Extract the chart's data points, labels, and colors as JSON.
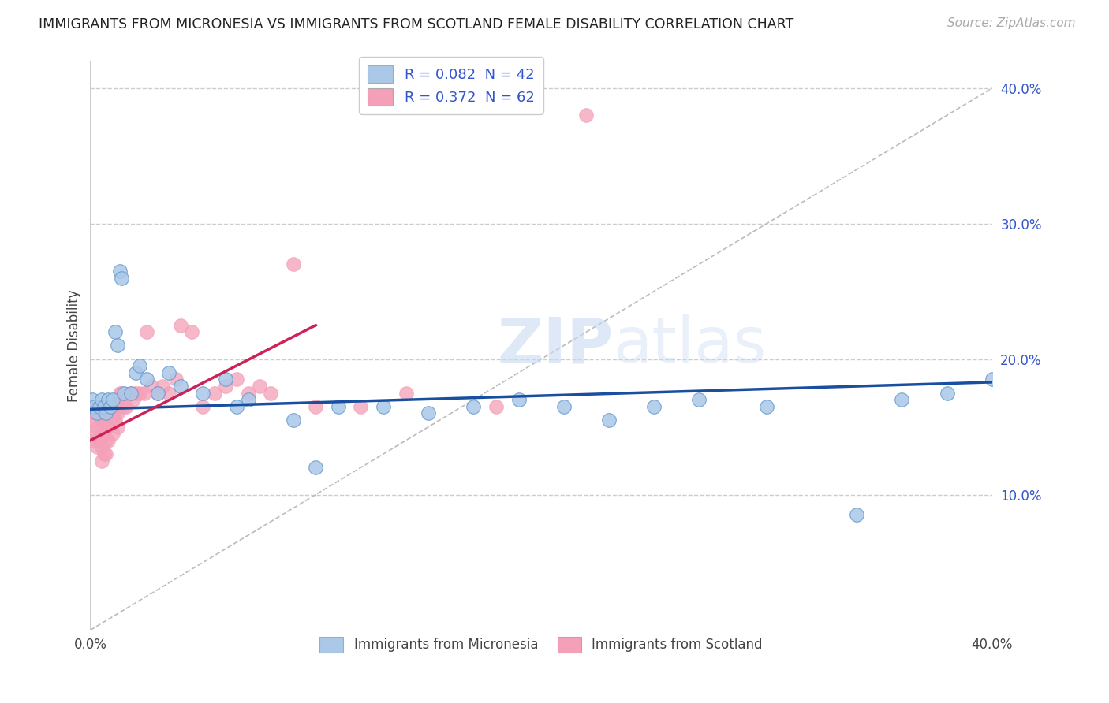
{
  "title": "IMMIGRANTS FROM MICRONESIA VS IMMIGRANTS FROM SCOTLAND FEMALE DISABILITY CORRELATION CHART",
  "source": "Source: ZipAtlas.com",
  "ylabel": "Female Disability",
  "blue_color": "#aac8e8",
  "pink_color": "#f4a0b8",
  "blue_line_color": "#1a4fa0",
  "pink_line_color": "#cc2255",
  "legend_text_color": "#3355cc",
  "legend_blue_label": "R = 0.082  N = 42",
  "legend_pink_label": "R = 0.372  N = 62",
  "legend_micronesia": "Immigrants from Micronesia",
  "legend_scotland": "Immigrants from Scotland",
  "xlim": [
    0.0,
    0.4
  ],
  "ylim": [
    0.0,
    0.42
  ],
  "micronesia_x": [
    0.001,
    0.002,
    0.003,
    0.004,
    0.005,
    0.006,
    0.007,
    0.008,
    0.009,
    0.01,
    0.011,
    0.012,
    0.013,
    0.014,
    0.015,
    0.018,
    0.02,
    0.022,
    0.025,
    0.03,
    0.035,
    0.04,
    0.05,
    0.06,
    0.065,
    0.07,
    0.09,
    0.1,
    0.11,
    0.13,
    0.15,
    0.17,
    0.19,
    0.21,
    0.23,
    0.25,
    0.27,
    0.3,
    0.34,
    0.36,
    0.38,
    0.4
  ],
  "micronesia_y": [
    0.17,
    0.165,
    0.16,
    0.165,
    0.17,
    0.165,
    0.16,
    0.17,
    0.165,
    0.17,
    0.22,
    0.21,
    0.265,
    0.26,
    0.175,
    0.175,
    0.19,
    0.195,
    0.185,
    0.175,
    0.19,
    0.18,
    0.175,
    0.185,
    0.165,
    0.17,
    0.155,
    0.12,
    0.165,
    0.165,
    0.16,
    0.165,
    0.17,
    0.165,
    0.155,
    0.165,
    0.17,
    0.165,
    0.085,
    0.17,
    0.175,
    0.185
  ],
  "scotland_x": [
    0.001,
    0.001,
    0.002,
    0.002,
    0.003,
    0.003,
    0.004,
    0.004,
    0.005,
    0.005,
    0.005,
    0.005,
    0.006,
    0.006,
    0.006,
    0.007,
    0.007,
    0.007,
    0.007,
    0.008,
    0.008,
    0.008,
    0.009,
    0.009,
    0.01,
    0.01,
    0.01,
    0.011,
    0.011,
    0.012,
    0.012,
    0.013,
    0.013,
    0.014,
    0.015,
    0.016,
    0.018,
    0.019,
    0.02,
    0.022,
    0.024,
    0.025,
    0.027,
    0.03,
    0.032,
    0.035,
    0.038,
    0.04,
    0.045,
    0.05,
    0.055,
    0.06,
    0.065,
    0.07,
    0.075,
    0.08,
    0.09,
    0.1,
    0.12,
    0.14,
    0.18,
    0.22
  ],
  "scotland_y": [
    0.16,
    0.145,
    0.155,
    0.14,
    0.15,
    0.135,
    0.16,
    0.14,
    0.155,
    0.145,
    0.135,
    0.125,
    0.155,
    0.145,
    0.13,
    0.16,
    0.15,
    0.14,
    0.13,
    0.16,
    0.15,
    0.14,
    0.165,
    0.155,
    0.16,
    0.155,
    0.145,
    0.165,
    0.155,
    0.16,
    0.15,
    0.175,
    0.165,
    0.175,
    0.165,
    0.165,
    0.175,
    0.17,
    0.175,
    0.175,
    0.175,
    0.22,
    0.18,
    0.175,
    0.18,
    0.175,
    0.185,
    0.225,
    0.22,
    0.165,
    0.175,
    0.18,
    0.185,
    0.175,
    0.18,
    0.175,
    0.27,
    0.165,
    0.165,
    0.175,
    0.165,
    0.38
  ],
  "blue_regression_x0": 0.0,
  "blue_regression_y0": 0.163,
  "blue_regression_x1": 0.4,
  "blue_regression_y1": 0.183,
  "pink_regression_x0": 0.0,
  "pink_regression_y0": 0.14,
  "pink_regression_x1": 0.1,
  "pink_regression_y1": 0.225
}
